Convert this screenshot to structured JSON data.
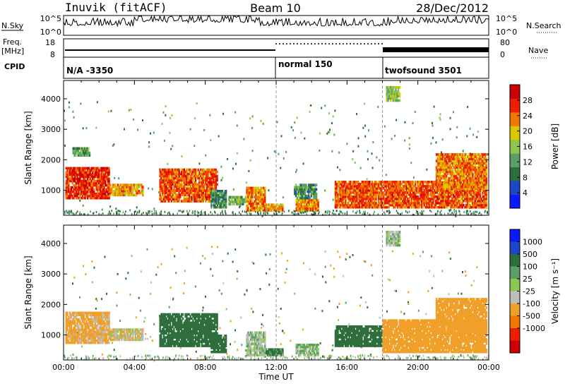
{
  "header": {
    "title": "Inuvik (fitACF)",
    "beam": "Beam 10",
    "date": "28/Dec/2012"
  },
  "summary": {
    "left_top_label": "N.Sky",
    "left_mid_label": "Freq.",
    "left_mid_unit": "[MHz]",
    "cpid_label": "CPID",
    "right_top_label": "N.Search",
    "right_mid_label": "Nave",
    "nsky_ticks": [
      "10^5",
      "10^0"
    ],
    "freq_ticks": [
      "18",
      "8"
    ],
    "nave_ticks": [
      "80",
      "0"
    ],
    "nsearch_ticks": [
      "10^5",
      "10^0"
    ],
    "cpid_segments": [
      "N/A -3350",
      "normal 150",
      "twofsound 3501"
    ]
  },
  "colors": {
    "power_scale": [
      "#0a1aff",
      "#1e46c8",
      "#2d6e3c",
      "#5aa064",
      "#8cc850",
      "#dcc800",
      "#f07800",
      "#f01e00",
      "#cc0000"
    ],
    "velocity_scale": [
      "#0a1aff",
      "#1e46c8",
      "#2d6e3c",
      "#5aa064",
      "#8cc850",
      "#bebebe",
      "#f0a028",
      "#f07800",
      "#f01e00",
      "#cc0000"
    ]
  },
  "chart_data": [
    {
      "type": "heatmap",
      "title": "",
      "xlabel": "",
      "ylabel": "Slant Range [km]",
      "xlim": [
        "00:00",
        "24:00"
      ],
      "ylim": [
        180,
        4600
      ],
      "yticks": [
        1000,
        2000,
        3000,
        4000
      ],
      "color_label": "Power [dB]",
      "color_ticks": [
        4,
        8,
        12,
        16,
        20,
        24,
        28
      ],
      "regions": [
        {
          "t": [
            0.1,
            2.6
          ],
          "r": [
            700,
            1750
          ],
          "value": 26
        },
        {
          "t": [
            2.6,
            4.5
          ],
          "r": [
            800,
            1200
          ],
          "value": 20
        },
        {
          "t": [
            0.5,
            1.5
          ],
          "r": [
            2100,
            2400
          ],
          "value": 10
        },
        {
          "t": [
            5.4,
            8.7
          ],
          "r": [
            600,
            1700
          ],
          "value": 24
        },
        {
          "t": [
            8.3,
            9.2
          ],
          "r": [
            400,
            1000
          ],
          "value": 8
        },
        {
          "t": [
            9.3,
            10.3
          ],
          "r": [
            500,
            800
          ],
          "value": 12
        },
        {
          "t": [
            10.3,
            11.4
          ],
          "r": [
            300,
            1100
          ],
          "value": 22
        },
        {
          "t": [
            11.4,
            12.4
          ],
          "r": [
            300,
            550
          ],
          "value": 20
        },
        {
          "t": [
            13.1,
            14.4
          ],
          "r": [
            300,
            700
          ],
          "value": 22
        },
        {
          "t": [
            13.0,
            14.3
          ],
          "r": [
            700,
            1200
          ],
          "value": 8
        },
        {
          "t": [
            15.3,
            23.9
          ],
          "r": [
            400,
            1300
          ],
          "value": 24
        },
        {
          "t": [
            18.2,
            19.0
          ],
          "r": [
            3900,
            4400
          ],
          "value": 14
        },
        {
          "t": [
            21.0,
            23.9
          ],
          "r": [
            1000,
            2200
          ],
          "value": 22
        }
      ]
    },
    {
      "type": "heatmap",
      "title": "",
      "xlabel": "Time UT",
      "ylabel": "Slant Range [km]",
      "xlim": [
        "00:00",
        "24:00"
      ],
      "ylim": [
        180,
        4600
      ],
      "xticks": [
        "00:00",
        "04:00",
        "08:00",
        "12:00",
        "16:00",
        "20:00",
        "00:00"
      ],
      "yticks": [
        1000,
        2000,
        3000,
        4000
      ],
      "color_label": "Velocity [m s⁻¹]",
      "color_ticks": [
        1000,
        500,
        100,
        25,
        -25,
        -100,
        -500,
        -1000
      ],
      "regions": [
        {
          "t": [
            0.1,
            2.6
          ],
          "r": [
            700,
            1750
          ],
          "value": -150
        },
        {
          "t": [
            2.6,
            4.5
          ],
          "r": [
            800,
            1200
          ],
          "value": -80
        },
        {
          "t": [
            5.4,
            8.7
          ],
          "r": [
            600,
            1700
          ],
          "value": 300
        },
        {
          "t": [
            8.3,
            9.2
          ],
          "r": [
            400,
            1000
          ],
          "value": 200
        },
        {
          "t": [
            10.3,
            11.4
          ],
          "r": [
            300,
            1100
          ],
          "value": 0
        },
        {
          "t": [
            11.4,
            12.4
          ],
          "r": [
            300,
            550
          ],
          "value": 150
        },
        {
          "t": [
            13.1,
            14.4
          ],
          "r": [
            300,
            700
          ],
          "value": 0
        },
        {
          "t": [
            15.3,
            18.0
          ],
          "r": [
            600,
            1300
          ],
          "value": 300
        },
        {
          "t": [
            18.0,
            23.9
          ],
          "r": [
            400,
            1500
          ],
          "value": -200
        },
        {
          "t": [
            18.2,
            19.0
          ],
          "r": [
            3900,
            4400
          ],
          "value": 0
        },
        {
          "t": [
            21.0,
            23.9
          ],
          "r": [
            1000,
            2200
          ],
          "value": -300
        }
      ]
    }
  ]
}
